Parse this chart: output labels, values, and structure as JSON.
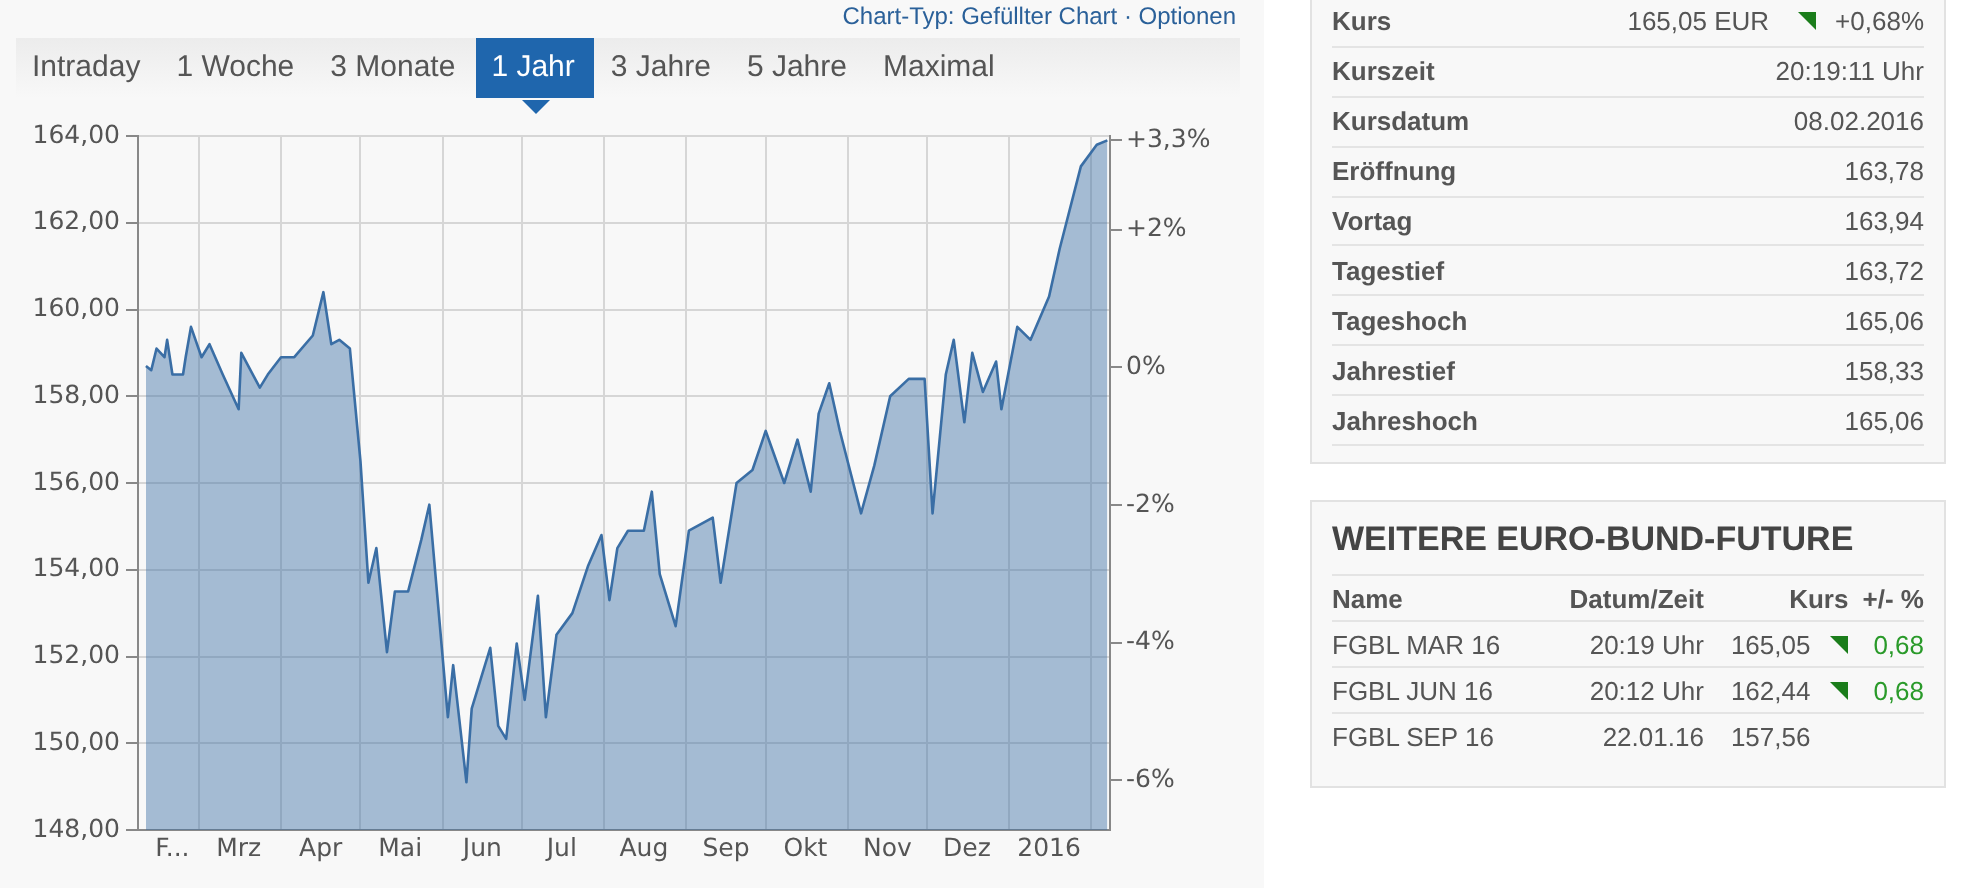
{
  "chart_data": [
    {
      "type": "area",
      "annotations": [
        "Chart-Typ: Gefüllter Chart · Optionen",
        "Intraday",
        "1 Woche",
        "3 Monate",
        "1 Jahr",
        "3 Jahre",
        "5 Jahre",
        "Maximal"
      ],
      "x": [
        "2015-02-09",
        "2015-02-11",
        "2015-02-13",
        "2015-02-16",
        "2015-02-17",
        "2015-02-19",
        "2015-02-23",
        "2015-02-24",
        "2015-02-26",
        "2015-03-02",
        "2015-03-05",
        "2015-03-10",
        "2015-03-16",
        "2015-03-17",
        "2015-03-24",
        "2015-03-27",
        "2015-04-01",
        "2015-04-06",
        "2015-04-13",
        "2015-04-17",
        "2015-04-20",
        "2015-04-23",
        "2015-04-27",
        "2015-05-01",
        "2015-05-04",
        "2015-05-07",
        "2015-05-11",
        "2015-05-14",
        "2015-05-19",
        "2015-05-24",
        "2015-05-27",
        "2015-06-03",
        "2015-06-05",
        "2015-06-10",
        "2015-06-12",
        "2015-06-17",
        "2015-06-19",
        "2015-06-22",
        "2015-06-25",
        "2015-06-29",
        "2015-07-02",
        "2015-07-07",
        "2015-07-10",
        "2015-07-14",
        "2015-07-20",
        "2015-07-26",
        "2015-07-31",
        "2015-08-03",
        "2015-08-06",
        "2015-08-10",
        "2015-08-16",
        "2015-08-19",
        "2015-08-22",
        "2015-08-28",
        "2015-09-02",
        "2015-09-11",
        "2015-09-14",
        "2015-09-20",
        "2015-09-26",
        "2015-10-01",
        "2015-10-08",
        "2015-10-13",
        "2015-10-18",
        "2015-10-21",
        "2015-10-25",
        "2015-10-29",
        "2015-11-06",
        "2015-11-11",
        "2015-11-17",
        "2015-11-24",
        "2015-11-30",
        "2015-12-03",
        "2015-12-08",
        "2015-12-11",
        "2015-12-15",
        "2015-12-18",
        "2015-12-22",
        "2015-12-27",
        "2015-12-29",
        "2016-01-04",
        "2016-01-09",
        "2016-01-16",
        "2016-01-20",
        "2016-01-28",
        "2016-02-03",
        "2016-02-07"
      ],
      "series": [
        {
          "color": "#3a6ea5",
          "values": [
            158.7,
            158.6,
            159.1,
            158.9,
            159.3,
            158.5,
            158.5,
            158.9,
            159.6,
            158.9,
            159.2,
            158.5,
            157.7,
            159.0,
            158.2,
            158.5,
            158.9,
            158.9,
            159.4,
            160.4,
            159.2,
            159.3,
            159.1,
            156.5,
            153.7,
            154.5,
            152.1,
            153.5,
            153.5,
            154.7,
            155.5,
            150.6,
            151.8,
            149.1,
            150.8,
            151.8,
            152.2,
            150.4,
            150.1,
            152.3,
            151.0,
            153.4,
            150.6,
            152.5,
            153.0,
            154.1,
            154.8,
            153.3,
            154.5,
            154.9,
            154.9,
            155.8,
            153.9,
            152.7,
            154.9,
            155.2,
            153.7,
            156.0,
            156.3,
            157.2,
            156.0,
            157.0,
            155.8,
            157.6,
            158.3,
            157.2,
            155.3,
            156.4,
            158.0,
            158.4,
            158.4,
            155.3,
            158.5,
            159.3,
            157.4,
            159.0,
            158.1,
            158.8,
            157.7,
            159.6,
            159.3,
            160.3,
            161.4,
            163.3,
            163.8,
            163.9
          ]
        }
      ],
      "xlim": [
        "2015-02-06",
        "2016-02-08"
      ],
      "xticks": [
        {
          "value": "2015-02-19",
          "label": "F..."
        },
        {
          "value": "2015-03-01",
          "label": null
        },
        {
          "value": "2015-03-16",
          "label": "Mrz"
        },
        {
          "value": "2015-04-01",
          "label": null
        },
        {
          "value": "2015-04-16",
          "label": "Apr"
        },
        {
          "value": "2015-05-01",
          "label": null
        },
        {
          "value": "2015-05-16",
          "label": "Mai"
        },
        {
          "value": "2015-06-01",
          "label": null
        },
        {
          "value": "2015-06-16",
          "label": "Jun"
        },
        {
          "value": "2015-07-01",
          "label": null
        },
        {
          "value": "2015-07-16",
          "label": "Jul"
        },
        {
          "value": "2015-08-01",
          "label": null
        },
        {
          "value": "2015-08-16",
          "label": "Aug"
        },
        {
          "value": "2015-09-01",
          "label": null
        },
        {
          "value": "2015-09-16",
          "label": "Sep"
        },
        {
          "value": "2015-10-01",
          "label": null
        },
        {
          "value": "2015-10-16",
          "label": "Okt"
        },
        {
          "value": "2015-11-01",
          "label": null
        },
        {
          "value": "2015-11-16",
          "label": "Nov"
        },
        {
          "value": "2015-12-01",
          "label": null
        },
        {
          "value": "2015-12-16",
          "label": "Dez"
        },
        {
          "value": "2016-01-01",
          "label": null
        },
        {
          "value": "2016-01-16",
          "label": "2016"
        },
        {
          "value": "2016-02-01",
          "label": null
        }
      ],
      "ylim": [
        148,
        164
      ],
      "yticks": [
        {
          "value": 148,
          "label": "148,00"
        },
        {
          "value": 150,
          "label": "150,00"
        },
        {
          "value": 152,
          "label": "152,00"
        },
        {
          "value": 154,
          "label": "154,00"
        },
        {
          "value": 156,
          "label": "156,00"
        },
        {
          "value": 158,
          "label": "158,00"
        },
        {
          "value": 160,
          "label": "160,00"
        },
        {
          "value": 162,
          "label": "162,00"
        },
        {
          "value": 164,
          "label": "164,00"
        }
      ],
      "y2lim": [
        -6.72,
        3.36
      ],
      "y2ticks": [
        {
          "value": -6,
          "label": "-6%"
        },
        {
          "value": -4,
          "label": "-4%"
        },
        {
          "value": -2,
          "label": "-2%"
        },
        {
          "value": 0,
          "label": "0%"
        },
        {
          "value": 2,
          "label": "+2%"
        },
        {
          "value": 3.3,
          "label": "+3,3%"
        }
      ],
      "grid": true,
      "legend": false
    },
    {
      "type": "other",
      "y_categories": [
        "Kurs",
        "Kurszeit",
        "Kursdatum",
        "Eröffnung",
        "Vortag",
        "Tagestief",
        "Tageshoch",
        "Jahrestief",
        "Jahreshoch"
      ],
      "cell_labels": [
        [
          "165,05 EUR",
          "+0,68%"
        ],
        [
          "20:19:11 Uhr"
        ],
        [
          "08.02.2016"
        ],
        [
          "163,78"
        ],
        [
          "163,94"
        ],
        [
          "163,72"
        ],
        [
          "165,06"
        ],
        [
          "158,33"
        ],
        [
          "165,06"
        ]
      ]
    },
    {
      "type": "other",
      "title": "WEITERE EURO-BUND-FUTURE",
      "categories": [
        "Name",
        "Datum/Zeit",
        "Kurs",
        "+/- %"
      ],
      "y_categories": [
        "FGBL MAR 16",
        "FGBL JUN 16",
        "FGBL SEP 16"
      ],
      "cell_labels": [
        [
          "20:19 Uhr",
          "165,05",
          "0,68"
        ],
        [
          "20:12 Uhr",
          "162,44",
          "0,68"
        ],
        [
          "22.01.16",
          "157,56",
          null
        ]
      ]
    }
  ]
}
